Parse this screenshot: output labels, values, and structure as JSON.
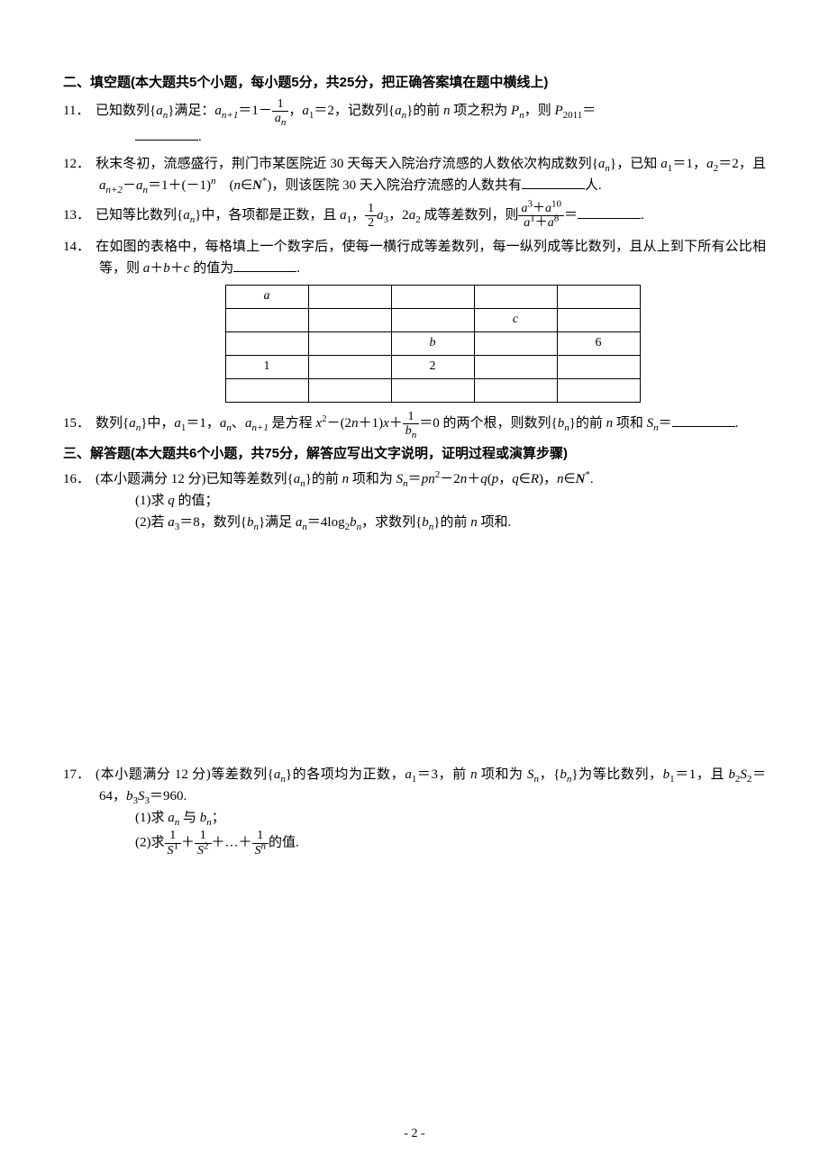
{
  "section2": {
    "title": "二、填空题(本大题共5个小题，每小题5分，共25分，把正确答案填在题中横线上)"
  },
  "q11": {
    "num": "11．",
    "pre": "已知数列{",
    "seq": "a",
    "seqSub": "n",
    "post1": "}满足：",
    "recur_lhs_a": "a",
    "recur_lhs_sub": "n+1",
    "eq1": "＝1－",
    "frac_num": "1",
    "frac_den_a": "a",
    "frac_den_sub": "n",
    "post2": "，",
    "a1": "a",
    "a1sub": "1",
    "a1val": "＝2，记数列{",
    "seq2": "a",
    "seq2Sub": "n",
    "post3": "}的前 ",
    "nvar": "n",
    "post4": " 项之积为 ",
    "Pvar": "P",
    "PvarSub": "n",
    "post5": "，则 ",
    "P2011": "P",
    "P2011Sub": "2011",
    "post6": "＝",
    "end": "."
  },
  "q12": {
    "num": "12．",
    "t1": "秋末冬初，流感盛行，荆门市某医院近 30 天每天入院治疗流感的人数依次构成数列{",
    "seq": "a",
    "seqSub": "n",
    "t2": "}，已知 ",
    "a1": "a",
    "a1sub": "1",
    "a1val": "＝1，",
    "a2": "a",
    "a2sub": "2",
    "a2val": "＝2，且 ",
    "rec_l": "a",
    "rec_lsub": "n+2",
    "minus": "－",
    "rec_r": "a",
    "rec_rsub": "n",
    "t3": "＝1＋(－1)",
    "exp_n": "n",
    "t4": "　(",
    "nvar": "n",
    "in": "∈",
    "Nstar": "N",
    "star": "*",
    "t5": ")，则该医院 30 天入院治疗流感的人数共有",
    "t6": "人."
  },
  "q13": {
    "num": "13．",
    "t1": "已知等比数列{",
    "seq": "a",
    "seqSub": "n",
    "t2": "}中，各项都是正数，且 ",
    "a1": "a",
    "a1sub": "1",
    "comma": "，",
    "half_num": "1",
    "half_den": "2",
    "a3": "a",
    "a3sub": "3",
    "t3": "，2",
    "a2": "a",
    "a2sub": "2",
    "t4": " 成等差数列，则",
    "big_num_l": "a",
    "big_num_lsup": "3",
    "plus": "＋",
    "big_num_r": "a",
    "big_num_rsup": "10",
    "big_den_l": "a",
    "big_den_lsup": "1",
    "big_den_r": "a",
    "big_den_rsup": "8",
    "eq": "＝",
    "end": "."
  },
  "q14": {
    "num": "14．",
    "t1": "在如图的表格中，每格填上一个数字后，使每一横行成等差数列，每一纵列成等比数列，且从上到下所有公比相等，则 ",
    "avar": "a",
    "bvar": "b",
    "cvar": "c",
    "t2": "＋",
    "t3": "＋",
    "t4": " 的值为",
    "end": ".",
    "table": {
      "rows": 5,
      "cols": 5,
      "cells": {
        "r0c0": "a",
        "r1c3": "c",
        "r2c2": "b",
        "r2c4": "6",
        "r3c0": "1",
        "r3c2": "2"
      }
    }
  },
  "q15": {
    "num": "15．",
    "t1": "数列{",
    "seq": "a",
    "seqSub": "n",
    "t2": "}中，",
    "a1": "a",
    "a1sub": "1",
    "a1val": "＝1，",
    "an": "a",
    "ansub": "n",
    "sep": "、",
    "an1": "a",
    "an1sub": "n+1",
    "t3": " 是方程 ",
    "xvar": "x",
    "sq": "2",
    "t4": "－(2",
    "nvar": "n",
    "t5": "＋1)",
    "xvar2": "x",
    "t6": "＋",
    "frac_num": "1",
    "frac_den_b": "b",
    "frac_den_sub": "n",
    "t7": "＝0 的两个根，则数列{",
    "bseq": "b",
    "bseqSub": "n",
    "t8": "}的前 ",
    "nvar2": "n",
    "t9": " 项和 ",
    "Svar": "S",
    "SvarSub": "n",
    "t10": "＝",
    "end": "."
  },
  "section3": {
    "title": "三、解答题(本大题共6个小题，共75分，解答应写出文字说明，证明过程或演算步骤)"
  },
  "q16": {
    "num": "16．",
    "t1": "(本小题满分 12 分)已知等差数列{",
    "seq": "a",
    "seqSub": "n",
    "t2": "}的前 ",
    "nvar": "n",
    "t3": " 项和为 ",
    "Svar": "S",
    "SvarSub": "n",
    "eq": "＝",
    "pvar": "p",
    "nvar2": "n",
    "sq": "2",
    "t4": "－2",
    "nvar3": "n",
    "t5": "＋",
    "qvar": "q",
    "t6": "(",
    "pvar2": "p",
    "comma": "，",
    "qvar2": "q",
    "in": "∈",
    "Rset": "R",
    "t7": ")，",
    "nvar4": "n",
    "in2": "∈",
    "Nstar": "N",
    "star": "*",
    "t8": ".",
    "s1_label": "(1)求 ",
    "s1_q": "q",
    "s1_end": " 的值；",
    "s2_label": "(2)若 ",
    "s2_a3": "a",
    "s2_a3sub": "3",
    "s2_val": "＝8，数列{",
    "s2_bseq": "b",
    "s2_bseqSub": "n",
    "s2_t1": "}满足 ",
    "s2_an": "a",
    "s2_ansub": "n",
    "s2_eq": "＝4log",
    "s2_base": "2",
    "s2_bn": "b",
    "s2_bnsub": "n",
    "s2_t2": "，求数列{",
    "s2_bseq2": "b",
    "s2_bseq2Sub": "n",
    "s2_t3": "}的前 ",
    "s2_n": "n",
    "s2_t4": " 项和."
  },
  "q17": {
    "num": "17．",
    "t1": "(本小题满分 12 分)等差数列{",
    "seq": "a",
    "seqSub": "n",
    "t2": "}的各项均为正数，",
    "a1": "a",
    "a1sub": "1",
    "a1val": "＝3，前 ",
    "nvar": "n",
    "t3": " 项和为 ",
    "Svar": "S",
    "SvarSub": "n",
    "t4": "，{",
    "bseq": "b",
    "bseqSub": "n",
    "t5": "}为等比数列，",
    "b1": "b",
    "b1sub": "1",
    "b1val": "＝1，且 ",
    "b2": "b",
    "b2sub": "2",
    "S2": "S",
    "S2sub": "2",
    "v64": "＝64，",
    "b3": "b",
    "b3sub": "3",
    "S3": "S",
    "S3sub": "3",
    "v960": "＝960.",
    "s1_label": "(1)求 ",
    "s1_an": "a",
    "s1_ansub": "n",
    "s1_and": " 与 ",
    "s1_bn": "b",
    "s1_bnsub": "n",
    "s1_end": "；",
    "s2_label": "(2)求",
    "f1n": "1",
    "f1d": "S",
    "f1dsup": "1",
    "plus1": "＋",
    "f2n": "1",
    "f2d": "S",
    "f2dsup": "2",
    "plus2": "＋…＋",
    "fnn": "1",
    "fnd": "S",
    "fndsup": "n",
    "s2_end": "的值."
  },
  "pageNum": "- 2 -"
}
